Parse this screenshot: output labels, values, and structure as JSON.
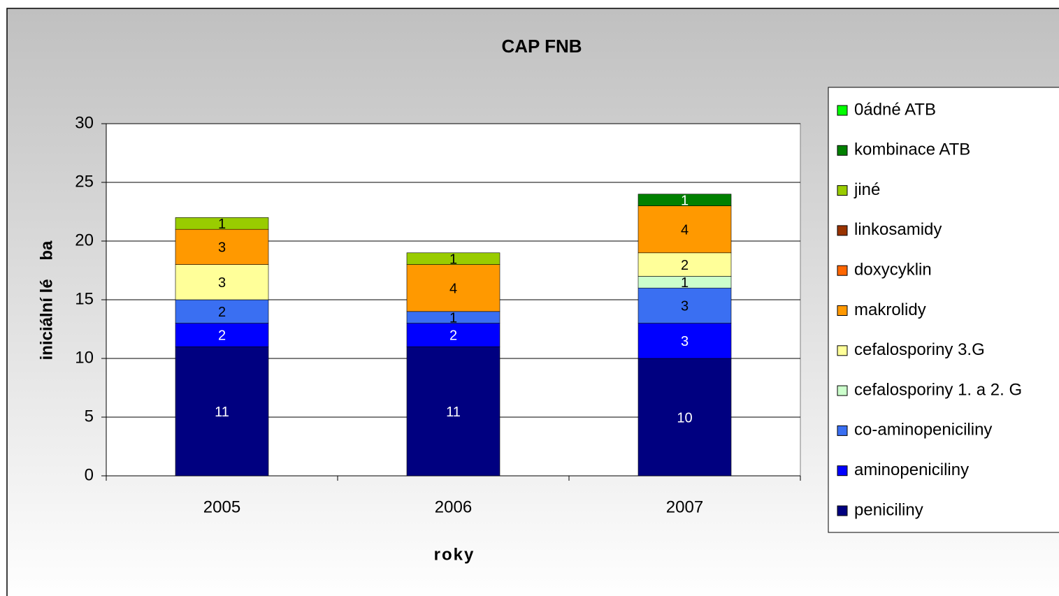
{
  "chart_data": {
    "type": "stacked-bar",
    "title": "CAP FNB",
    "x_label": "roky",
    "y_label": "iniciální lé    ba",
    "categories": [
      "2005",
      "2006",
      "2007"
    ],
    "series": [
      {
        "name": "peniciliny",
        "color": "#000080",
        "values": [
          11,
          11,
          10
        ]
      },
      {
        "name": "aminopeniciliny",
        "color": "#0000ff",
        "values": [
          2,
          2,
          3
        ]
      },
      {
        "name": "co-aminopeniciliny",
        "color": "#3a6ff2",
        "values": [
          2,
          1,
          3
        ]
      },
      {
        "name": "cefalosporiny 1. a 2. G",
        "color": "#ccffcc",
        "values": [
          null,
          null,
          1
        ]
      },
      {
        "name": "cefalosporiny 3.G",
        "color": "#ffff99",
        "values": [
          3,
          null,
          2
        ]
      },
      {
        "name": "makrolidy",
        "color": "#ff9900",
        "values": [
          3,
          4,
          4
        ]
      },
      {
        "name": "doxycyklin",
        "color": "#ff6600",
        "values": [
          null,
          null,
          null
        ]
      },
      {
        "name": "linkosamidy",
        "color": "#993300",
        "values": [
          null,
          null,
          null
        ]
      },
      {
        "name": "jiné",
        "color": "#99cc00",
        "values": [
          1,
          1,
          null
        ]
      },
      {
        "name": "kombinace ATB",
        "color": "#008000",
        "values": [
          null,
          null,
          1
        ]
      },
      {
        "name": "0ádné ATB",
        "color": "#00ff00",
        "values": [
          null,
          null,
          null
        ]
      }
    ],
    "ylim": [
      0,
      30
    ],
    "yticks": [
      0,
      5,
      10,
      15,
      20,
      25,
      30
    ],
    "grid": true,
    "legend": "right"
  }
}
